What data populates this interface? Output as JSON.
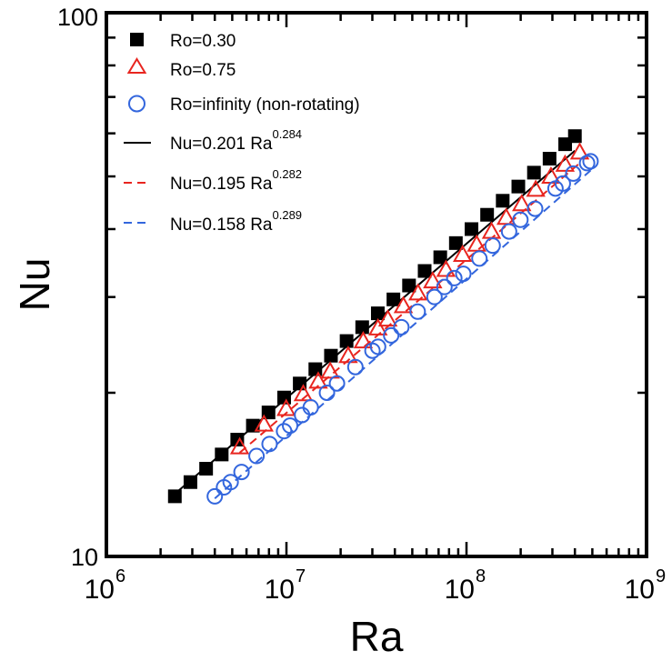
{
  "chart_data": {
    "type": "scatter",
    "title": "",
    "xlabel": "Ra",
    "ylabel": "Nu",
    "x_scale": "log",
    "y_scale": "log",
    "xlim": [
      1000000,
      1000000000
    ],
    "ylim": [
      10,
      100
    ],
    "x_ticks": [
      {
        "base": "10",
        "exp": "6",
        "value": 1000000
      },
      {
        "base": "10",
        "exp": "7",
        "value": 10000000
      },
      {
        "base": "10",
        "exp": "8",
        "value": 100000000
      },
      {
        "base": "10",
        "exp": "9",
        "value": 1000000000
      }
    ],
    "y_ticks": [
      {
        "label": "10",
        "value": 10
      },
      {
        "label": "100",
        "value": 100
      }
    ],
    "grid": false,
    "legend_position": "top-left",
    "series": [
      {
        "name": "Ro=0.30",
        "marker": "filled-square",
        "color": "#000000",
        "x": [
          2400000,
          2930000,
          3580000,
          4370000,
          5330000,
          6510000,
          7950000,
          9710000,
          11850000,
          14470000,
          17670000,
          21580000,
          26350000,
          32170000,
          39280000,
          47960000,
          58560000,
          71500000,
          87300000,
          106600000,
          130160000,
          158930000,
          194060000,
          236960000,
          289330000,
          353280000,
          400000000
        ],
        "y": [
          12.9,
          13.7,
          14.5,
          15.4,
          16.4,
          17.4,
          18.4,
          19.6,
          20.8,
          22.1,
          23.4,
          24.9,
          26.4,
          28.0,
          29.7,
          31.5,
          33.5,
          35.5,
          37.7,
          40.0,
          42.5,
          45.1,
          47.9,
          50.8,
          53.9,
          57.3,
          59.3
        ]
      },
      {
        "name": "Ro=0.75",
        "marker": "open-triangle",
        "color": "#e8251f",
        "x": [
          5500000,
          7500000,
          9970000,
          12400000,
          15020000,
          17490000,
          22030000,
          26700000,
          32240000,
          36590000,
          44590000,
          53830000,
          64920000,
          76890000,
          95130000,
          113890000,
          137730000,
          166190000,
          202650000,
          242460000,
          294610000,
          352680000,
          425300000
        ],
        "y": [
          15.9,
          17.5,
          18.7,
          19.9,
          21.0,
          21.9,
          23.4,
          24.9,
          26.3,
          27.3,
          28.9,
          30.5,
          32.1,
          33.7,
          35.9,
          37.5,
          39.6,
          42.0,
          44.5,
          47.3,
          50.0,
          52.6,
          55.4
        ]
      },
      {
        "name": "Ro=infinity (non-rotating)",
        "marker": "open-circle",
        "color": "#3366dd",
        "x": [
          4000000,
          4500000,
          4900000,
          5630000,
          6820000,
          8060000,
          9700000,
          10480000,
          12210000,
          13640000,
          16790000,
          19090000,
          24150000,
          30040000,
          32290000,
          38170000,
          43480000,
          53560000,
          66410000,
          75440000,
          85590000,
          96020000,
          117990000,
          139740000,
          172410000,
          199340000,
          240530000,
          312110000,
          342760000,
          391730000,
          467530000,
          488720000
        ],
        "y": [
          12.9,
          13.4,
          13.7,
          14.3,
          15.3,
          16.1,
          17.0,
          17.4,
          18.2,
          18.8,
          20.0,
          20.8,
          22.3,
          23.9,
          24.3,
          25.5,
          26.4,
          28.2,
          30.0,
          31.3,
          32.5,
          33.1,
          35.3,
          37.3,
          39.6,
          41.6,
          43.6,
          47.5,
          48.5,
          50.6,
          52.9,
          53.3
        ]
      }
    ],
    "fits": [
      {
        "label_prefix": "Nu=0.201 Ra",
        "exponent_label": "0.284",
        "coef": 0.201,
        "exponent": 0.284,
        "color": "#000000",
        "style": "solid",
        "x_range": [
          2400000,
          400000000
        ]
      },
      {
        "label_prefix": "Nu=0.195 Ra",
        "exponent_label": "0.282",
        "coef": 0.195,
        "exponent": 0.282,
        "color": "#e8251f",
        "style": "dashed",
        "x_range": [
          5500000,
          425300000
        ]
      },
      {
        "label_prefix": "Nu=0.158 Ra",
        "exponent_label": "0.289",
        "coef": 0.158,
        "exponent": 0.289,
        "color": "#3366dd",
        "style": "dashed",
        "x_range": [
          4000000,
          488720000
        ]
      }
    ]
  }
}
